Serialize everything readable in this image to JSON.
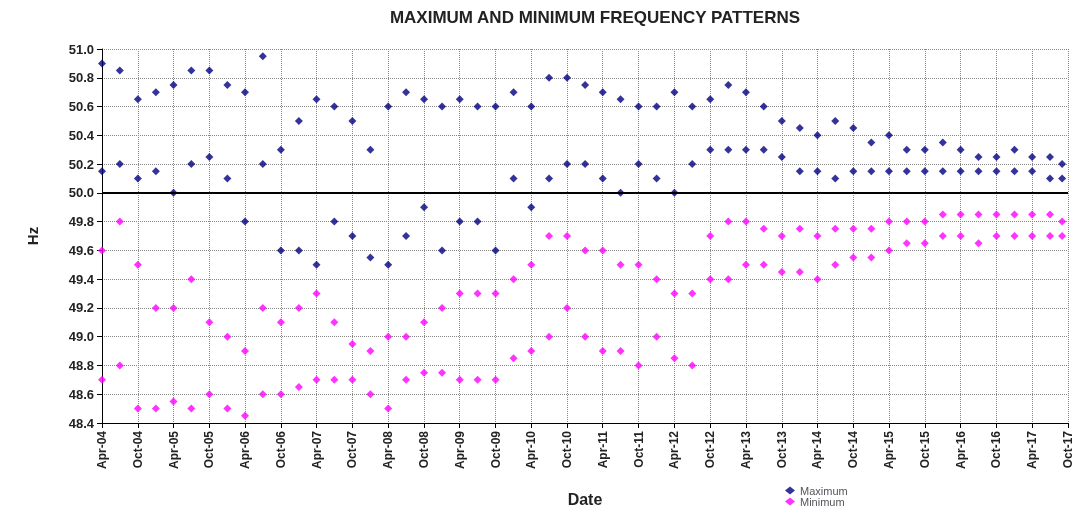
{
  "chart_data": {
    "type": "scatter",
    "title": "MAXIMUM AND MINIMUM FREQUENCY PATTERNS",
    "xlabel": "Date",
    "ylabel": "Hz",
    "marker": "diamond",
    "grid": true,
    "legend": "bottom",
    "xlim": [
      "2004-04",
      "2017-10"
    ],
    "xticks": [
      {
        "value": "2004-04",
        "label": "Apr-04"
      },
      {
        "value": "2004-10",
        "label": "Oct-04"
      },
      {
        "value": "2005-04",
        "label": "Apr-05"
      },
      {
        "value": "2005-10",
        "label": "Oct-05"
      },
      {
        "value": "2006-04",
        "label": "Apr-06"
      },
      {
        "value": "2006-10",
        "label": "Oct-06"
      },
      {
        "value": "2007-04",
        "label": "Apr-07"
      },
      {
        "value": "2007-10",
        "label": "Oct-07"
      },
      {
        "value": "2008-04",
        "label": "Apr-08"
      },
      {
        "value": "2008-10",
        "label": "Oct-08"
      },
      {
        "value": "2009-04",
        "label": "Apr-09"
      },
      {
        "value": "2009-10",
        "label": "Oct-09"
      },
      {
        "value": "2010-04",
        "label": "Apr-10"
      },
      {
        "value": "2010-10",
        "label": "Oct-10"
      },
      {
        "value": "2011-04",
        "label": "Apr-11"
      },
      {
        "value": "2011-10",
        "label": "Oct-11"
      },
      {
        "value": "2012-04",
        "label": "Apr-12"
      },
      {
        "value": "2012-10",
        "label": "Oct-12"
      },
      {
        "value": "2013-04",
        "label": "Apr-13"
      },
      {
        "value": "2013-10",
        "label": "Oct-13"
      },
      {
        "value": "2014-04",
        "label": "Apr-14"
      },
      {
        "value": "2014-10",
        "label": "Oct-14"
      },
      {
        "value": "2015-04",
        "label": "Apr-15"
      },
      {
        "value": "2015-10",
        "label": "Oct-15"
      },
      {
        "value": "2016-04",
        "label": "Apr-16"
      },
      {
        "value": "2016-10",
        "label": "Oct-16"
      },
      {
        "value": "2017-04",
        "label": "Apr-17"
      },
      {
        "value": "2017-10",
        "label": "Oct-17"
      }
    ],
    "ylim": [
      48.4,
      51.0
    ],
    "yticks": [
      {
        "value": 48.4,
        "label": "48.4"
      },
      {
        "value": 48.6,
        "label": "48.6"
      },
      {
        "value": 48.8,
        "label": "48.8"
      },
      {
        "value": 49.0,
        "label": "49.0"
      },
      {
        "value": 49.2,
        "label": "49.2"
      },
      {
        "value": 49.4,
        "label": "49.4"
      },
      {
        "value": 49.6,
        "label": "49.6"
      },
      {
        "value": 49.8,
        "label": "49.8"
      },
      {
        "value": 50.0,
        "label": "50.0"
      },
      {
        "value": 50.2,
        "label": "50.2"
      },
      {
        "value": 50.4,
        "label": "50.4"
      },
      {
        "value": 50.6,
        "label": "50.6"
      },
      {
        "value": 50.8,
        "label": "50.8"
      },
      {
        "value": 51.0,
        "label": "51.0"
      }
    ],
    "ref_lines": [
      {
        "axis": "y",
        "value": 50.0,
        "color": "#000000"
      }
    ],
    "series": [
      {
        "name": "Maximum",
        "color": "#000080",
        "x": [
          "2004-04",
          "2004-04",
          "2004-07",
          "2004-07",
          "2004-10",
          "2004-10",
          "2005-01",
          "2005-01",
          "2005-04",
          "2005-04",
          "2005-07",
          "2005-07",
          "2005-10",
          "2005-10",
          "2006-01",
          "2006-01",
          "2006-04",
          "2006-04",
          "2006-07",
          "2006-07",
          "2006-10",
          "2006-10",
          "2007-01",
          "2007-01",
          "2007-04",
          "2007-04",
          "2007-07",
          "2007-07",
          "2007-10",
          "2007-10",
          "2008-01",
          "2008-01",
          "2008-04",
          "2008-04",
          "2008-07",
          "2008-07",
          "2008-10",
          "2008-10",
          "2009-01",
          "2009-01",
          "2009-04",
          "2009-04",
          "2009-07",
          "2009-07",
          "2009-10",
          "2009-10",
          "2010-01",
          "2010-01",
          "2010-04",
          "2010-04",
          "2010-07",
          "2010-07",
          "2010-10",
          "2010-10",
          "2011-01",
          "2011-01",
          "2011-04",
          "2011-04",
          "2011-07",
          "2011-07",
          "2011-10",
          "2011-10",
          "2012-01",
          "2012-01",
          "2012-04",
          "2012-04",
          "2012-07",
          "2012-07",
          "2012-10",
          "2012-10",
          "2013-01",
          "2013-01",
          "2013-04",
          "2013-04",
          "2013-07",
          "2013-07",
          "2013-10",
          "2013-10",
          "2014-01",
          "2014-01",
          "2014-04",
          "2014-04",
          "2014-07",
          "2014-07",
          "2014-10",
          "2014-10",
          "2015-01",
          "2015-01",
          "2015-04",
          "2015-04",
          "2015-07",
          "2015-07",
          "2015-10",
          "2015-10",
          "2016-01",
          "2016-01",
          "2016-04",
          "2016-04",
          "2016-07",
          "2016-07",
          "2016-10",
          "2016-10",
          "2017-01",
          "2017-01",
          "2017-04",
          "2017-04",
          "2017-07",
          "2017-07",
          "2017-09",
          "2017-09"
        ],
        "values": [
          50.9,
          50.15,
          50.85,
          50.2,
          50.65,
          50.1,
          50.7,
          50.15,
          50.75,
          50.0,
          50.85,
          50.2,
          50.85,
          50.25,
          50.75,
          50.1,
          50.7,
          49.8,
          50.95,
          50.2,
          50.3,
          49.6,
          50.5,
          49.6,
          50.65,
          49.5,
          50.6,
          49.8,
          50.5,
          49.7,
          50.3,
          49.55,
          50.6,
          49.5,
          50.7,
          49.7,
          50.65,
          49.9,
          50.6,
          49.6,
          50.65,
          49.8,
          50.6,
          49.8,
          50.6,
          49.6,
          50.7,
          50.1,
          50.6,
          49.9,
          50.8,
          50.1,
          50.8,
          50.2,
          50.75,
          50.2,
          50.7,
          50.1,
          50.65,
          50.0,
          50.6,
          50.2,
          50.6,
          50.1,
          50.7,
          50.0,
          50.6,
          50.2,
          50.65,
          50.3,
          50.75,
          50.3,
          50.7,
          50.3,
          50.6,
          50.3,
          50.5,
          50.25,
          50.45,
          50.15,
          50.4,
          50.15,
          50.5,
          50.1,
          50.45,
          50.15,
          50.35,
          50.15,
          50.4,
          50.15,
          50.3,
          50.15,
          50.3,
          50.15,
          50.35,
          50.15,
          50.3,
          50.15,
          50.25,
          50.15,
          50.25,
          50.15,
          50.3,
          50.15,
          50.25,
          50.15,
          50.25,
          50.1,
          50.2,
          50.1
        ]
      },
      {
        "name": "Minimum",
        "color": "#ff00ff",
        "x": [
          "2004-04",
          "2004-04",
          "2004-07",
          "2004-07",
          "2004-10",
          "2004-10",
          "2005-01",
          "2005-01",
          "2005-04",
          "2005-04",
          "2005-07",
          "2005-07",
          "2005-10",
          "2005-10",
          "2006-01",
          "2006-01",
          "2006-04",
          "2006-04",
          "2006-07",
          "2006-07",
          "2006-10",
          "2006-10",
          "2007-01",
          "2007-01",
          "2007-04",
          "2007-04",
          "2007-07",
          "2007-07",
          "2007-10",
          "2007-10",
          "2008-01",
          "2008-01",
          "2008-04",
          "2008-04",
          "2008-07",
          "2008-07",
          "2008-10",
          "2008-10",
          "2009-01",
          "2009-01",
          "2009-04",
          "2009-04",
          "2009-07",
          "2009-07",
          "2009-10",
          "2009-10",
          "2010-01",
          "2010-01",
          "2010-04",
          "2010-04",
          "2010-07",
          "2010-07",
          "2010-10",
          "2010-10",
          "2011-01",
          "2011-01",
          "2011-04",
          "2011-04",
          "2011-07",
          "2011-07",
          "2011-10",
          "2011-10",
          "2012-01",
          "2012-01",
          "2012-04",
          "2012-04",
          "2012-07",
          "2012-07",
          "2012-10",
          "2012-10",
          "2013-01",
          "2013-01",
          "2013-04",
          "2013-04",
          "2013-07",
          "2013-07",
          "2013-10",
          "2013-10",
          "2014-01",
          "2014-01",
          "2014-04",
          "2014-04",
          "2014-07",
          "2014-07",
          "2014-10",
          "2014-10",
          "2015-01",
          "2015-01",
          "2015-04",
          "2015-04",
          "2015-07",
          "2015-07",
          "2015-10",
          "2015-10",
          "2016-01",
          "2016-01",
          "2016-04",
          "2016-04",
          "2016-07",
          "2016-07",
          "2016-10",
          "2016-10",
          "2017-01",
          "2017-01",
          "2017-04",
          "2017-04",
          "2017-07",
          "2017-07",
          "2017-09",
          "2017-09"
        ],
        "values": [
          49.6,
          48.7,
          49.8,
          48.8,
          49.5,
          48.5,
          49.2,
          48.5,
          49.2,
          48.55,
          49.4,
          48.5,
          49.1,
          48.6,
          49.0,
          48.5,
          48.9,
          48.45,
          49.2,
          48.6,
          49.1,
          48.6,
          49.2,
          48.65,
          49.3,
          48.7,
          49.1,
          48.7,
          48.95,
          48.7,
          48.9,
          48.6,
          49.0,
          48.5,
          49.0,
          48.7,
          49.1,
          48.75,
          49.2,
          48.75,
          49.3,
          48.7,
          49.3,
          48.7,
          49.3,
          48.7,
          49.4,
          48.85,
          49.5,
          48.9,
          49.7,
          49.0,
          49.7,
          49.2,
          49.6,
          49.0,
          49.6,
          48.9,
          49.5,
          48.9,
          49.5,
          48.8,
          49.4,
          49.0,
          49.3,
          48.85,
          49.3,
          48.8,
          49.7,
          49.4,
          49.8,
          49.4,
          49.8,
          49.5,
          49.75,
          49.5,
          49.7,
          49.45,
          49.75,
          49.45,
          49.7,
          49.4,
          49.75,
          49.5,
          49.75,
          49.55,
          49.75,
          49.55,
          49.8,
          49.6,
          49.8,
          49.65,
          49.8,
          49.65,
          49.85,
          49.7,
          49.85,
          49.7,
          49.85,
          49.65,
          49.85,
          49.7,
          49.85,
          49.7,
          49.85,
          49.7,
          49.85,
          49.7,
          49.8,
          49.7
        ]
      }
    ]
  }
}
